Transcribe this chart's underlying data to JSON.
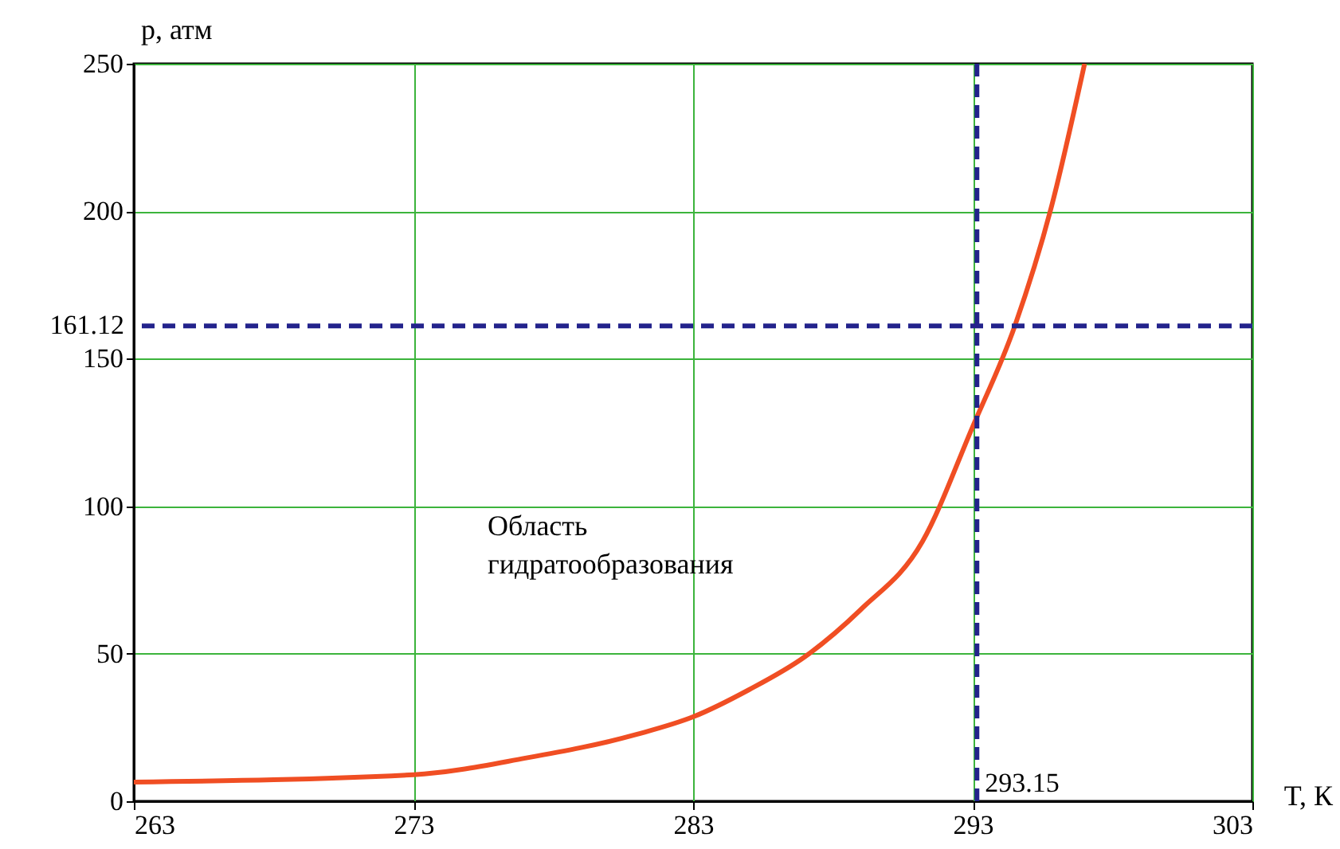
{
  "chart_data": {
    "type": "line",
    "xlabel": "T, К",
    "ylabel": "p, атм",
    "x": [
      263,
      273,
      277,
      281,
      283,
      285,
      287,
      289,
      291.2,
      293,
      294.5,
      295.8,
      297
    ],
    "series": [
      {
        "color": "#f04e23",
        "values": [
          6.5,
          9,
          14.6,
          22.7,
          28.6,
          37.8,
          49,
          65,
          88,
          127,
          161,
          201,
          250
        ]
      }
    ],
    "xlim": [
      263,
      303
    ],
    "xticks": [
      263,
      273,
      283,
      293,
      303
    ],
    "ylim": [
      0,
      250
    ],
    "yticks": [
      0,
      50,
      100,
      150,
      200,
      250
    ],
    "grid": true,
    "marker": "none",
    "line_style": "solid",
    "ref_lines": [
      {
        "axis": "y",
        "value": 161.12,
        "label": "161.12",
        "color": "#23238c",
        "line_style": "dashed"
      },
      {
        "axis": "x",
        "value": 293.15,
        "label": "293.15",
        "color": "#23238c",
        "line_style": "dashed"
      }
    ],
    "annotations": [
      "Область\nгидратообразования"
    ]
  }
}
